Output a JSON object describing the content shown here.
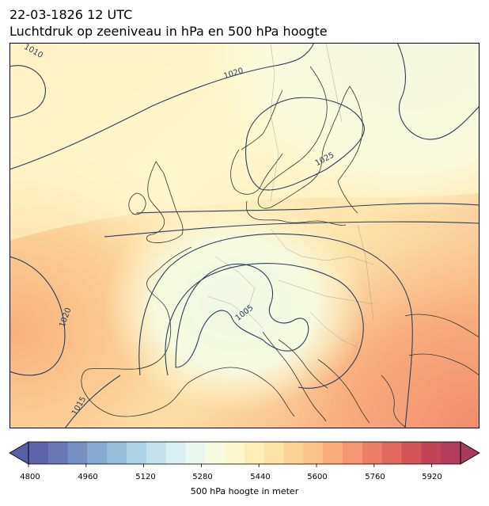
{
  "header": {
    "datetime": "22-03-1826 12 UTC",
    "subtitle": "Luchtdruk op zeeniveau in hPa en 500 hPa hoogte"
  },
  "map": {
    "region": "Europe",
    "isobar_color": "#2a3f5f",
    "coast_color": "#333333",
    "isobar_labels": [
      "1010",
      "1020",
      "1025",
      "1005",
      "1020",
      "1015"
    ]
  },
  "colorbar": {
    "title": "500 hPa hoogte in meter",
    "ticks": [
      "4800",
      "4960",
      "5120",
      "5280",
      "5440",
      "5600",
      "5760",
      "5920"
    ],
    "range": [
      4800,
      6000
    ],
    "colors": [
      "#5e63aa",
      "#6a79b6",
      "#7690c2",
      "#85a9cf",
      "#98bfdc",
      "#acd3e6",
      "#c2e2ee",
      "#d9eff3",
      "#ebf7f1",
      "#f7fbe0",
      "#fdf8cc",
      "#fdeeb7",
      "#fde2a6",
      "#fcd395",
      "#fbc288",
      "#f8ad7b",
      "#f39671",
      "#ec7f66",
      "#e1695d",
      "#d35558",
      "#c24457",
      "#b33e5c"
    ]
  }
}
